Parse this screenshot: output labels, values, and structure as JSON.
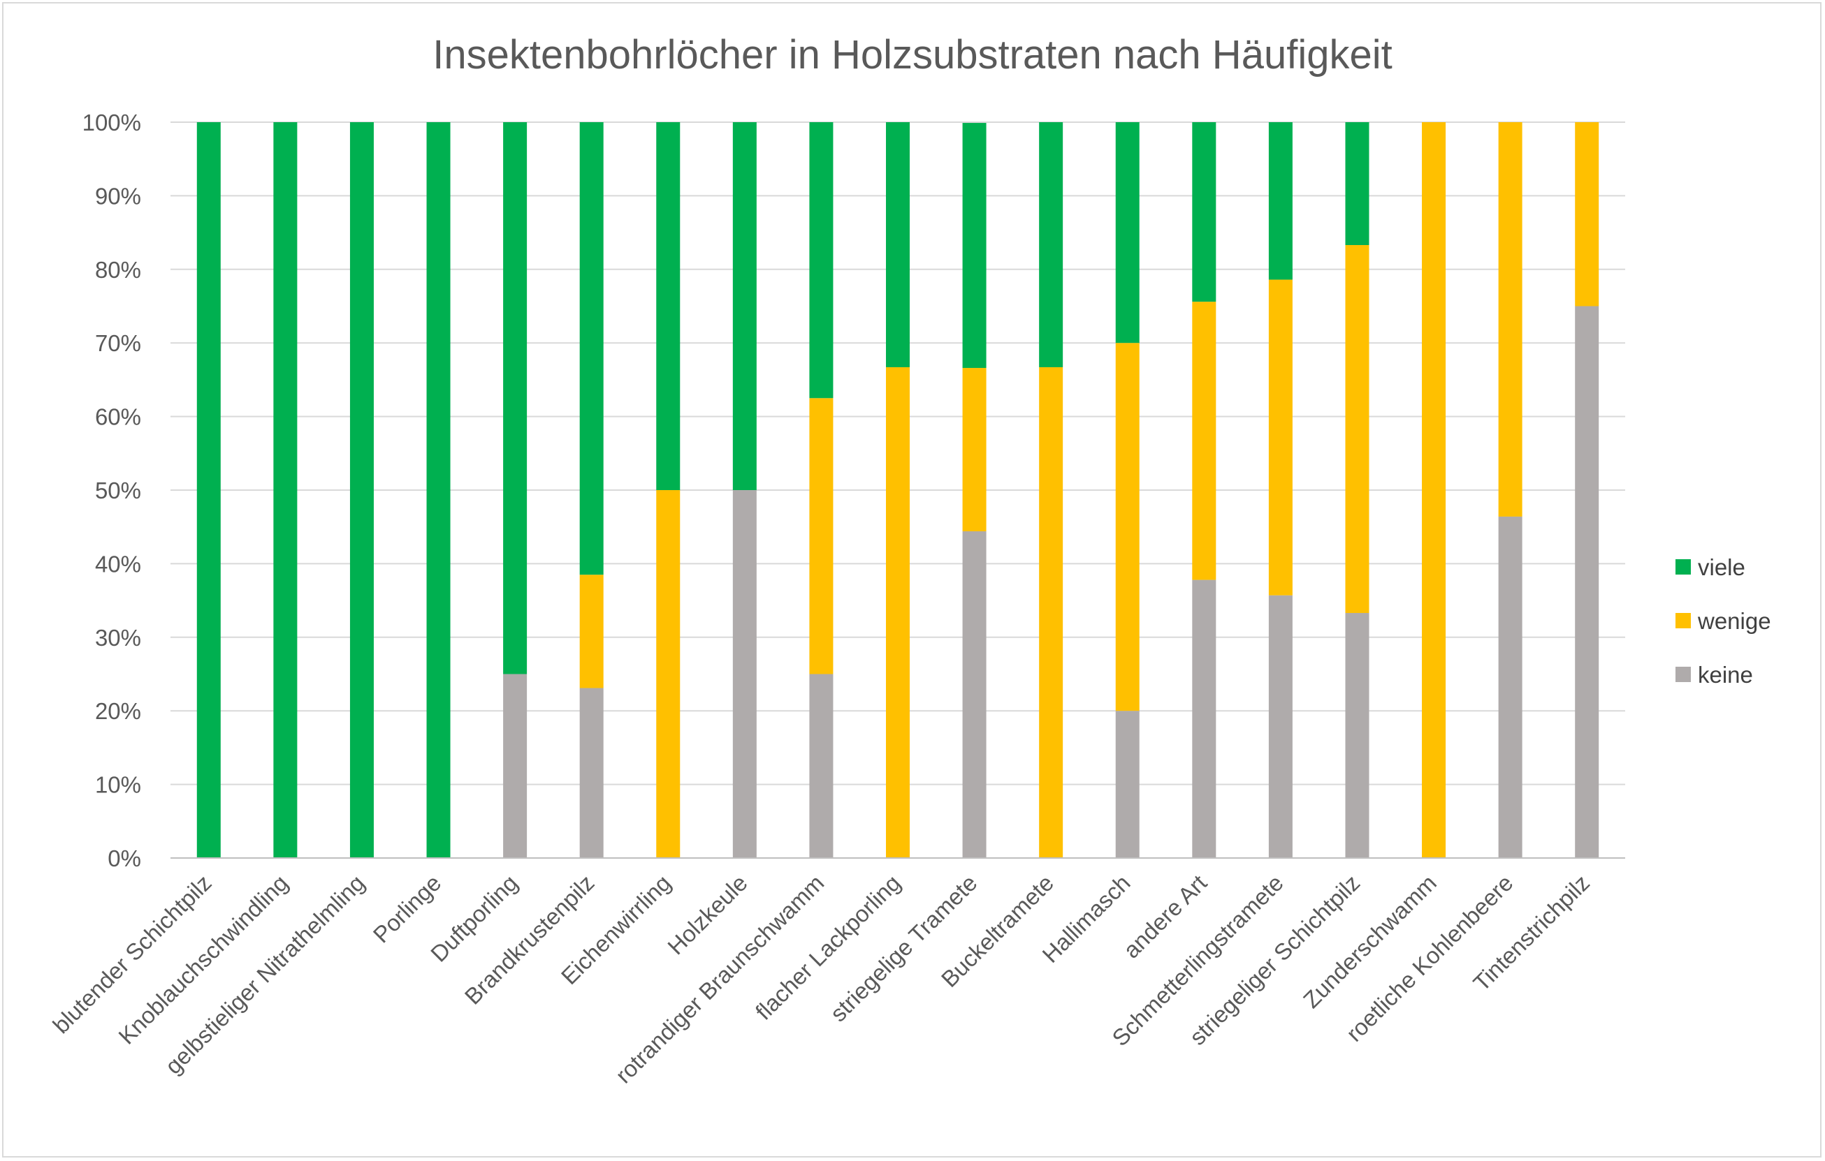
{
  "chart_data": {
    "type": "bar",
    "stacked": true,
    "stack_mode": "percent",
    "title": "Insektenbohrlöcher in Holzsubstraten nach Häufigkeit",
    "xlabel": "",
    "ylabel": "",
    "ylim": [
      0,
      100
    ],
    "y_ticks": [
      "0%",
      "10%",
      "20%",
      "30%",
      "40%",
      "50%",
      "60%",
      "70%",
      "80%",
      "90%",
      "100%"
    ],
    "grid": true,
    "legend_position": "right",
    "categories": [
      "blutender Schichtpilz",
      "Knoblauchschwindling",
      "gelbstieliger Nitrathelmling",
      "Porlinge",
      "Duftporling",
      "Brandkrustenpilz",
      "Eichenwirrling",
      "Holzkeule",
      "rotrandiger Braunschwamm",
      "flacher Lackporling",
      "striegelige Tramete",
      "Buckeltramete",
      "Hallimasch",
      "andere Art",
      "Schmetterlingstramete",
      "striegeliger Schichtpilz",
      "Zunderschwamm",
      "roetliche Kohlenbeere",
      "Tintenstrichpilz"
    ],
    "series": [
      {
        "name": "keine",
        "color": "#afabab",
        "values": [
          0,
          0,
          0,
          0,
          25,
          23.1,
          0,
          50,
          25,
          0,
          44.4,
          0,
          20,
          37.8,
          35.7,
          33.3,
          0,
          46.4,
          75
        ]
      },
      {
        "name": "wenige",
        "color": "#ffc000",
        "values": [
          0,
          0,
          0,
          0,
          0,
          15.4,
          50,
          0,
          37.5,
          66.7,
          22.2,
          66.7,
          50,
          37.8,
          42.9,
          50,
          100,
          53.6,
          25
        ]
      },
      {
        "name": "viele",
        "color": "#00b050",
        "values": [
          100,
          100,
          100,
          100,
          75,
          61.5,
          50,
          50,
          37.5,
          33.3,
          33.3,
          33.3,
          30,
          24.4,
          21.4,
          16.7,
          0,
          0,
          0
        ]
      }
    ],
    "legend_order": [
      "viele",
      "wenige",
      "keine"
    ]
  }
}
